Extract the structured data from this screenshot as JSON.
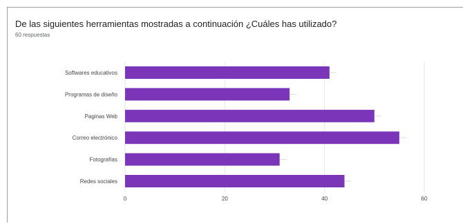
{
  "question": {
    "title": "De las siguientes herramientas mostradas a continuación ¿Cuáles has utilizado?",
    "response_count": "60 respuestas"
  },
  "chart_data": {
    "type": "bar",
    "orientation": "horizontal",
    "title": "De las siguientes herramientas mostradas a continuación ¿Cuáles has utilizado?",
    "categories": [
      "Softwares educativos",
      "Programas de diseño",
      "Paginas Web",
      "Correo electrónico",
      "Fotografías",
      "Redes sociales"
    ],
    "values": [
      41,
      33,
      50,
      55,
      31,
      44
    ],
    "xlim": [
      0,
      60
    ],
    "ticks": [
      "0",
      "20",
      "40",
      "60"
    ],
    "grid": true,
    "legend": "none",
    "bar_color": "#7b35b8"
  }
}
